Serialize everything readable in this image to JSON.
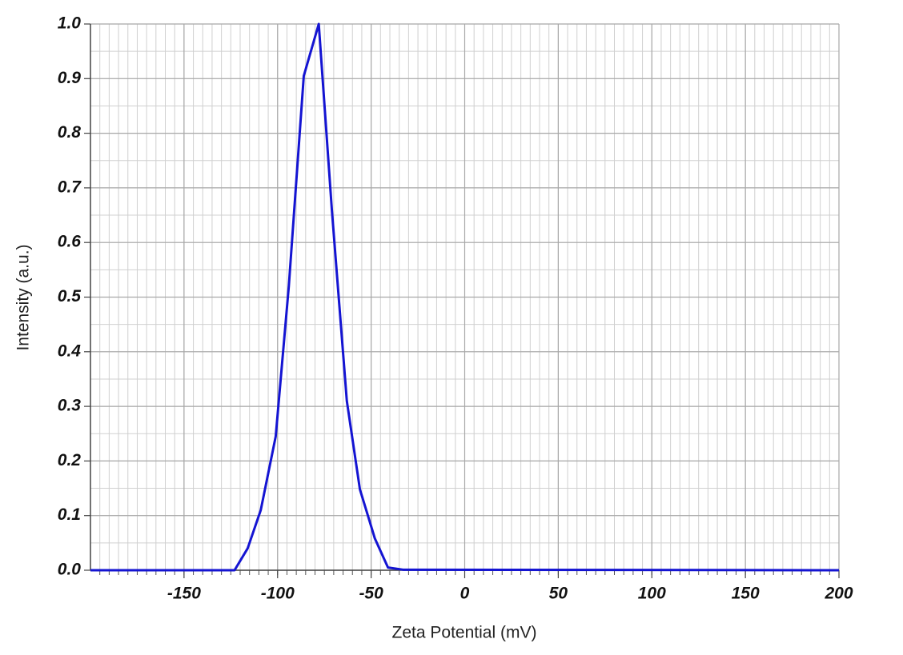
{
  "chart_data": {
    "type": "line",
    "x_label": "Zeta Potential (mV)",
    "y_label": "Intensity (a.u.)",
    "x": [
      -200,
      -123,
      -116,
      -109,
      -101,
      -94,
      -86,
      -78,
      -71,
      -63,
      -56,
      -48,
      -41,
      -33,
      200
    ],
    "series": [
      {
        "color": "#1414d2",
        "values": [
          0,
          0,
          0.04,
          0.11,
          0.245,
          0.52,
          0.905,
          1.0,
          0.66,
          0.31,
          0.148,
          0.058,
          0.005,
          0.001,
          0
        ]
      }
    ],
    "xlim": [
      -200,
      200
    ],
    "xticks": [
      -150,
      -100,
      -50,
      0,
      50,
      100,
      150,
      200
    ],
    "ylim": [
      0,
      1
    ],
    "yticks": [
      {
        "value": 0,
        "label": "0.0"
      },
      0.1,
      0.2,
      0.3,
      0.4,
      0.5,
      0.6,
      0.7,
      0.8,
      0.9,
      {
        "value": 1,
        "label": "1.0"
      }
    ],
    "grid": true
  }
}
